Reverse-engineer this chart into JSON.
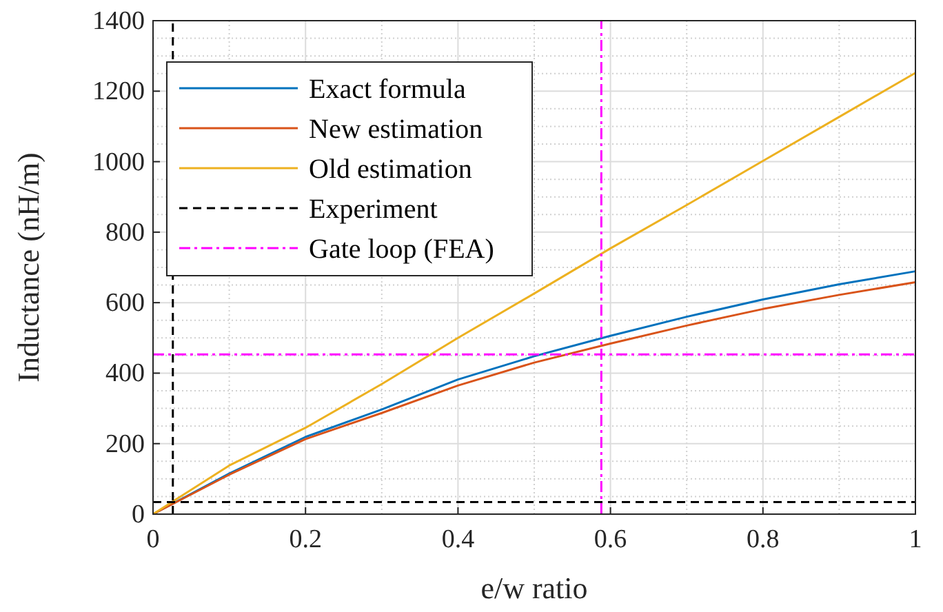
{
  "chart_data": {
    "type": "line",
    "xlabel": "e/w ratio",
    "ylabel": "Inductance (nH/m)",
    "xlim": [
      0,
      1
    ],
    "ylim": [
      0,
      1400
    ],
    "xticks": [
      0,
      0.2,
      0.4,
      0.6,
      0.8,
      1
    ],
    "yticks": [
      0,
      200,
      400,
      600,
      800,
      1000,
      1200,
      1400
    ],
    "grid": true,
    "legend": "top left",
    "line_style": "solid",
    "x": [
      0,
      0.1,
      0.2,
      0.3,
      0.4,
      0.5,
      0.6,
      0.7,
      0.8,
      0.9,
      1
    ],
    "series": [
      {
        "name": "Exact formula",
        "color": "#0072bd",
        "values": [
          0,
          115,
          219,
          297,
          382,
          448,
          506,
          560,
          609,
          652,
          689
        ]
      },
      {
        "name": "New estimation",
        "color": "#d95319",
        "values": [
          0,
          112,
          213,
          287,
          365,
          430,
          484,
          535,
          582,
          622,
          658
        ]
      },
      {
        "name": "Old estimation",
        "color": "#edb120",
        "values": [
          0,
          138,
          245,
          369,
          500,
          626,
          754,
          877,
          1002,
          1127,
          1252
        ]
      },
      {
        "name": "Experiment",
        "color": "#000000",
        "line_style": "dashed",
        "x": [
          0.026,
          0.026
        ],
        "values": [
          0,
          1400
        ]
      },
      {
        "color": "#000000",
        "line_style": "dashed",
        "x": [
          0,
          1
        ],
        "values": [
          34,
          34
        ]
      },
      {
        "name": "Gate loop (FEA)",
        "color": "#ff00ff",
        "line_style": "dashdot",
        "x": [
          0.588,
          0.588
        ],
        "values": [
          0,
          1400
        ]
      },
      {
        "color": "#ff00ff",
        "line_style": "dashdot",
        "x": [
          0,
          1
        ],
        "values": [
          453,
          453
        ]
      }
    ]
  }
}
